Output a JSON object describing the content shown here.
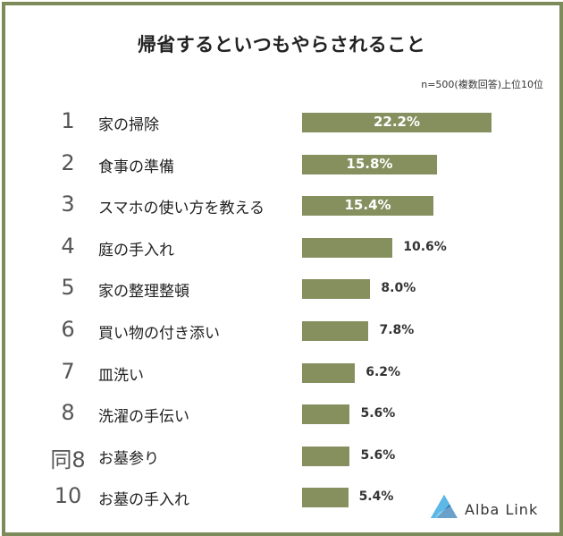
{
  "chart_data": {
    "type": "bar",
    "orientation": "horizontal",
    "title": "帰省するといつもやらされること",
    "note": "n=500(複数回答)上位10位",
    "ranks": [
      "1",
      "2",
      "3",
      "4",
      "5",
      "6",
      "7",
      "8",
      "同8",
      "10"
    ],
    "categories": [
      "家の掃除",
      "食事の準備",
      "スマホの使い方を教える",
      "庭の手入れ",
      "家の整理整頓",
      "買い物の付き添い",
      "皿洗い",
      "洗濯の手伝い",
      "お墓参り",
      "お墓の手入れ"
    ],
    "values": [
      22.2,
      15.8,
      15.4,
      10.6,
      8.0,
      7.8,
      6.2,
      5.6,
      5.6,
      5.4
    ],
    "value_labels": [
      "22.2%",
      "15.8%",
      "15.4%",
      "10.6%",
      "8.0%",
      "7.8%",
      "6.2%",
      "5.6%",
      "5.6%",
      "5.4%"
    ],
    "xlim": [
      0,
      22.2
    ],
    "grid": false,
    "bar_color": "#86905f"
  },
  "brand": {
    "name": "Alba Link"
  },
  "colors": {
    "frame": "#7d8a5a",
    "logo_dark": "#1b6fb0",
    "logo_light": "#5cb8e6"
  }
}
